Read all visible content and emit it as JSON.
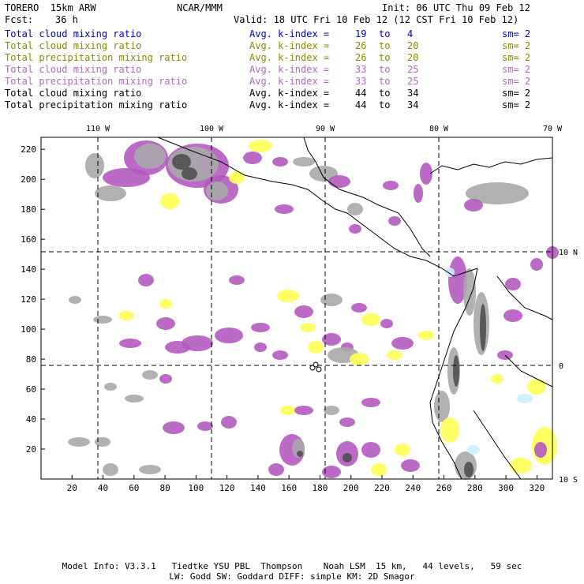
{
  "header": {
    "model": "TORERO  15km ARW",
    "org": "NCAR/MMM",
    "init": "Init: 06 UTC Thu 09 Feb 12",
    "fcst_label": "Fcst:",
    "fcst_value": "36 h",
    "valid": "Valid: 18 UTC Fri 10 Feb 12 (12 CST Fri 10 Feb 12)"
  },
  "legend": [
    {
      "field": "Total cloud mixing ratio",
      "kindex": "Avg. k-index =",
      "from": "19",
      "to_word": "to",
      "to": "4",
      "sm": "sm= 2",
      "color": "#0000cc"
    },
    {
      "field": "Total cloud mixing ratio",
      "kindex": "Avg. k-index =",
      "from": "26",
      "to_word": "to",
      "to": "20",
      "sm": "sm= 2",
      "color": "#8a8a00"
    },
    {
      "field": "Total precipitation mixing ratio",
      "kindex": "Avg. k-index =",
      "from": "26",
      "to_word": "to",
      "to": "20",
      "sm": "sm= 2",
      "color": "#8a8a00"
    },
    {
      "field": "Total cloud mixing ratio",
      "kindex": "Avg. k-index =",
      "from": "33",
      "to_word": "to",
      "to": "25",
      "sm": "sm= 2",
      "color": "#b466c8"
    },
    {
      "field": "Total precipitation mixing ratio",
      "kindex": "Avg. k-index =",
      "from": "33",
      "to_word": "to",
      "to": "25",
      "sm": "sm= 2",
      "color": "#b466c8"
    },
    {
      "field": "Total cloud mixing ratio",
      "kindex": "Avg. k-index =",
      "from": "44",
      "to_word": "to",
      "to": "34",
      "sm": "sm= 2",
      "color": "#000000"
    },
    {
      "field": "Total precipitation mixing ratio",
      "kindex": "Avg. k-index =",
      "from": "44",
      "to_word": "to",
      "to": "34",
      "sm": "sm= 2",
      "color": "#000000"
    }
  ],
  "map": {
    "x_ticks": [
      "20",
      "40",
      "60",
      "80",
      "100",
      "120",
      "140",
      "160",
      "180",
      "200",
      "220",
      "240",
      "260",
      "280",
      "300",
      "320"
    ],
    "y_ticks": [
      "20",
      "40",
      "60",
      "80",
      "100",
      "120",
      "140",
      "160",
      "180",
      "200",
      "220"
    ],
    "lon_labels": [
      "110 W",
      "100 W",
      "90 W",
      "80 W",
      "70 W"
    ],
    "lat_labels": [
      "10 N",
      "0",
      "10 S"
    ],
    "colors": {
      "gray": "#a8a8a8",
      "dark": "#505050",
      "magenta": "#b45ac0",
      "yellow": "#ffff55",
      "light_blue": "#cceeff",
      "grid": "#000000"
    }
  },
  "footer": {
    "line1": "Model Info: V3.3.1   Tiedtke YSU PBL  Thompson    Noah LSM  15 km,   44 levels,   59 sec",
    "line2": "LW: Godd SW: Goddard DIFF: simple KM: 2D Smagor"
  }
}
